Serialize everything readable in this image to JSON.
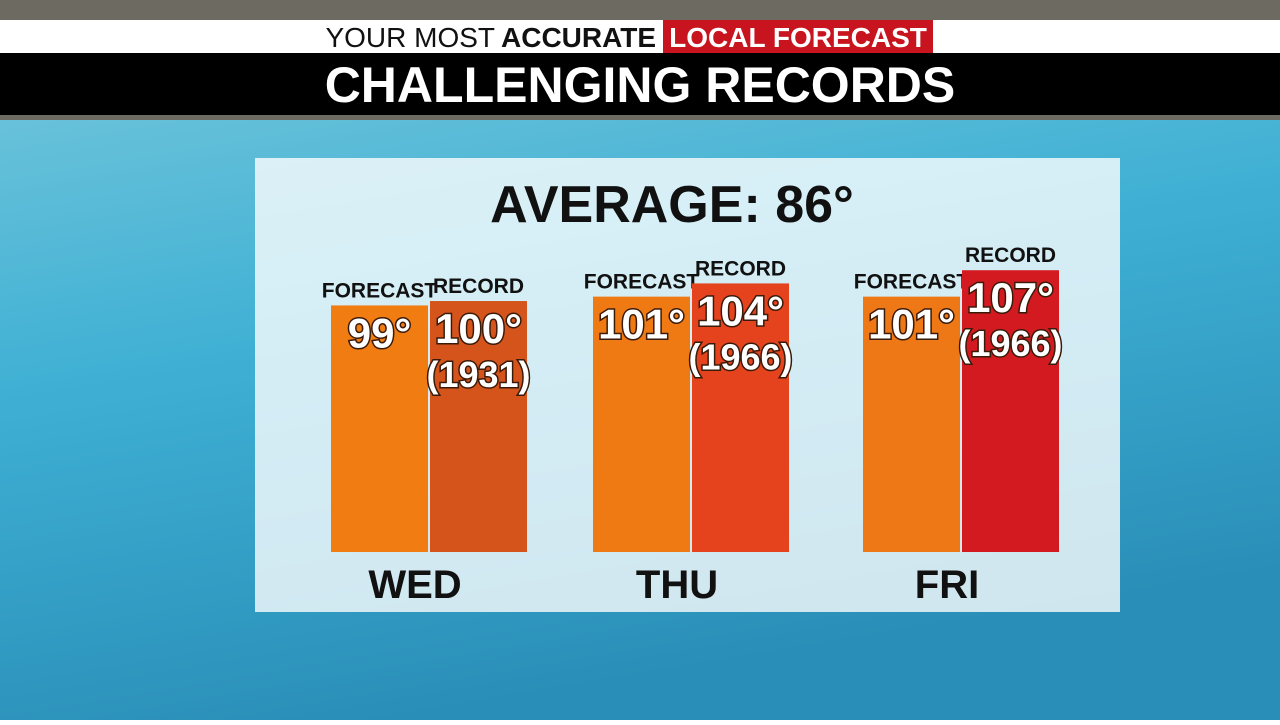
{
  "header": {
    "tagline_light": "YOUR MOST",
    "tagline_bold": "ACCURATE",
    "tagline_box": "LOCAL FORECAST"
  },
  "chart_data": {
    "type": "bar",
    "title": "CHALLENGING RECORDS",
    "subtitle": "AVERAGE: 86°",
    "categories": [
      "WED",
      "THU",
      "FRI"
    ],
    "series": [
      {
        "name": "FORECAST",
        "colors": [
          "#f07c12",
          "#ef7a14",
          "#ee7815"
        ],
        "values": [
          99,
          101,
          101
        ],
        "value_labels": [
          "99°",
          "101°",
          "101°"
        ]
      },
      {
        "name": "RECORD",
        "colors": [
          "#d4541c",
          "#e5431d",
          "#d21a20"
        ],
        "values": [
          100,
          104,
          107
        ],
        "value_labels": [
          "100°",
          "104°",
          "107°"
        ],
        "record_years": [
          "(1931)",
          "(1966)",
          "(1966)"
        ]
      }
    ],
    "ylim": [
      43,
      110
    ]
  }
}
